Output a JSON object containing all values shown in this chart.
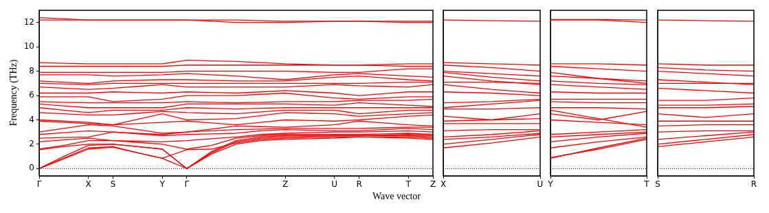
{
  "chart_data": [
    {
      "type": "line",
      "xlabel": "Wave vector",
      "ylabel": "Frequency (THz)",
      "legend": false,
      "grid": false,
      "categories": [
        "Γ",
        null,
        "X",
        "S",
        null,
        "Y",
        "Γ",
        null,
        null,
        null,
        "Z",
        null,
        "U",
        "R",
        null,
        "T",
        "Z"
      ],
      "ylim": [
        -0.6,
        13
      ],
      "yticks": [
        0,
        2,
        4,
        6,
        8,
        10,
        12
      ],
      "ref_lines": [
        {
          "axis": "y",
          "value": 0,
          "color": "#0000ff",
          "line_style": "dotted"
        }
      ],
      "series": [
        {
          "color": "#ff0000",
          "values": [
            0,
            0.8,
            1.6,
            1.75,
            1.3,
            0.85,
            0,
            1.2,
            2.0,
            2.3,
            2.4,
            2.45,
            2.5,
            2.6,
            2.55,
            2.5,
            2.4
          ]
        },
        {
          "color": "#ff0000",
          "values": [
            0,
            0.85,
            1.7,
            1.8,
            1.3,
            0.85,
            1.55,
            1.6,
            2.1,
            2.4,
            2.5,
            2.55,
            2.6,
            2.6,
            2.6,
            2.6,
            2.5
          ]
        },
        {
          "color": "#ff0000",
          "values": [
            0,
            1.0,
            1.9,
            2.0,
            1.8,
            1.6,
            0,
            1.3,
            2.2,
            2.5,
            2.6,
            2.65,
            2.7,
            2.7,
            2.7,
            2.7,
            2.6
          ]
        },
        {
          "color": "#ff0000",
          "values": [
            1.55,
            1.8,
            2.0,
            2.0,
            1.8,
            1.6,
            0,
            1.4,
            2.3,
            2.6,
            2.7,
            2.7,
            2.7,
            2.7,
            2.75,
            2.8,
            2.7
          ]
        },
        {
          "color": "#ff0000",
          "values": [
            1.6,
            1.9,
            2.3,
            2.3,
            2.15,
            2.0,
            1.6,
            1.9,
            2.5,
            2.7,
            2.8,
            2.8,
            2.8,
            2.8,
            2.85,
            2.9,
            2.8
          ]
        },
        {
          "color": "#ff0000",
          "values": [
            2.2,
            2.35,
            2.5,
            2.3,
            2.25,
            2.2,
            2.3,
            2.45,
            2.6,
            2.8,
            2.9,
            2.95,
            3.0,
            3.0,
            3.05,
            3.1,
            3.0
          ]
        },
        {
          "color": "#ff0000",
          "values": [
            2.5,
            2.55,
            2.6,
            3.0,
            2.85,
            2.7,
            2.8,
            2.85,
            2.9,
            3.1,
            3.2,
            3.15,
            3.1,
            3.1,
            3.2,
            3.3,
            3.2
          ]
        },
        {
          "color": "#ff0000",
          "values": [
            2.8,
            2.95,
            3.1,
            3.0,
            2.9,
            2.8,
            3.0,
            3.1,
            3.2,
            3.25,
            3.3,
            3.3,
            3.3,
            3.3,
            3.35,
            3.4,
            3.4
          ]
        },
        {
          "color": "#ff0000",
          "values": [
            3.0,
            3.3,
            3.6,
            3.5,
            3.2,
            2.9,
            3.0,
            3.25,
            3.5,
            3.45,
            3.4,
            3.5,
            3.6,
            3.9,
            3.75,
            3.6,
            3.5
          ]
        },
        {
          "color": "#ff0000",
          "values": [
            3.9,
            3.8,
            3.7,
            3.6,
            3.7,
            3.8,
            3.9,
            3.75,
            3.6,
            3.8,
            4.0,
            3.95,
            3.9,
            4.0,
            4.15,
            4.3,
            4.4
          ]
        },
        {
          "color": "#ff0000",
          "values": [
            4.0,
            3.9,
            3.8,
            3.6,
            4.05,
            4.5,
            4.0,
            4.05,
            4.1,
            4.35,
            4.6,
            4.55,
            4.5,
            4.3,
            4.4,
            4.5,
            4.6
          ]
        },
        {
          "color": "#ff0000",
          "values": [
            4.6,
            4.5,
            4.4,
            4.4,
            4.55,
            4.7,
            4.6,
            4.55,
            4.5,
            4.65,
            4.8,
            4.8,
            4.8,
            4.5,
            4.65,
            4.8,
            4.8
          ]
        },
        {
          "color": "#ff0000",
          "values": [
            5.0,
            4.8,
            4.6,
            4.8,
            4.8,
            4.8,
            5.0,
            4.95,
            4.9,
            4.95,
            5.0,
            5.0,
            5.0,
            5.0,
            5.0,
            5.0,
            5.0
          ]
        },
        {
          "color": "#ff0000",
          "values": [
            5.3,
            5.15,
            5.0,
            5.0,
            5.0,
            5.0,
            5.3,
            5.3,
            5.3,
            5.3,
            5.3,
            5.25,
            5.2,
            5.4,
            5.3,
            5.2,
            5.1
          ]
        },
        {
          "color": "#ff0000",
          "values": [
            5.5,
            5.45,
            5.4,
            5.4,
            5.4,
            5.4,
            5.5,
            5.45,
            5.4,
            5.45,
            5.5,
            5.5,
            5.5,
            5.6,
            5.6,
            5.6,
            5.7
          ]
        },
        {
          "color": "#ff0000",
          "values": [
            5.9,
            5.9,
            5.9,
            5.5,
            5.6,
            5.7,
            6.0,
            6.0,
            6.0,
            6.1,
            6.2,
            6.0,
            5.8,
            5.7,
            5.8,
            5.9,
            5.9
          ]
        },
        {
          "color": "#ff0000",
          "values": [
            6.2,
            6.2,
            6.2,
            6.3,
            6.25,
            6.2,
            6.3,
            6.25,
            6.2,
            6.3,
            6.4,
            6.3,
            6.2,
            6.0,
            6.15,
            6.3,
            6.3
          ]
        },
        {
          "color": "#ff0000",
          "values": [
            6.7,
            6.6,
            6.5,
            6.6,
            6.75,
            6.9,
            6.7,
            6.7,
            6.7,
            6.7,
            6.7,
            6.8,
            6.9,
            6.8,
            6.75,
            6.7,
            6.9
          ]
        },
        {
          "color": "#ff0000",
          "values": [
            7.0,
            6.95,
            6.9,
            7.0,
            7.0,
            7.0,
            7.0,
            7.0,
            7.0,
            7.0,
            7.0,
            7.0,
            7.0,
            7.0,
            7.05,
            7.1,
            7.1
          ]
        },
        {
          "color": "#ff0000",
          "values": [
            7.2,
            7.1,
            7.0,
            7.2,
            7.25,
            7.3,
            7.3,
            7.25,
            7.2,
            7.2,
            7.2,
            7.35,
            7.5,
            7.6,
            7.45,
            7.3,
            7.2
          ]
        },
        {
          "color": "#ff0000",
          "values": [
            7.7,
            7.7,
            7.7,
            7.6,
            7.65,
            7.7,
            7.8,
            7.7,
            7.6,
            7.45,
            7.3,
            7.5,
            7.7,
            7.8,
            7.7,
            7.6,
            7.5
          ]
        },
        {
          "color": "#ff0000",
          "values": [
            7.9,
            7.9,
            7.9,
            7.9,
            7.9,
            7.9,
            8.0,
            8.0,
            8.0,
            8.0,
            8.0,
            7.95,
            7.9,
            7.9,
            8.05,
            8.2,
            8.2
          ]
        },
        {
          "color": "#ff0000",
          "values": [
            8.4,
            8.4,
            8.4,
            8.4,
            8.4,
            8.4,
            8.5,
            8.5,
            8.5,
            8.5,
            8.5,
            8.5,
            8.5,
            8.5,
            8.45,
            8.4,
            8.4
          ]
        },
        {
          "color": "#ff0000",
          "values": [
            8.7,
            8.65,
            8.6,
            8.6,
            8.6,
            8.6,
            8.9,
            8.85,
            8.8,
            8.7,
            8.6,
            8.55,
            8.5,
            8.5,
            8.55,
            8.6,
            8.6
          ]
        },
        {
          "color": "#ff0000",
          "values": [
            12.2,
            12.2,
            12.2,
            12.2,
            12.2,
            12.2,
            12.2,
            12.1,
            12.0,
            12.0,
            12.0,
            12.05,
            12.1,
            12.1,
            12.05,
            12.0,
            12.0
          ]
        },
        {
          "color": "#ff0000",
          "values": [
            12.4,
            12.3,
            12.2,
            12.2,
            12.2,
            12.2,
            12.2,
            12.2,
            12.2,
            12.15,
            12.1,
            12.1,
            12.1,
            12.1,
            12.1,
            12.1,
            12.1
          ]
        }
      ]
    },
    {
      "type": "line",
      "legend": false,
      "grid": false,
      "tick_labels": "x",
      "categories": [
        "X",
        null,
        "U"
      ],
      "ylim": [
        -0.6,
        13
      ],
      "ref_lines": [
        {
          "axis": "y",
          "value": 0,
          "color": "#0000ff",
          "line_style": "dotted"
        }
      ],
      "series": [
        {
          "color": "#ff0000",
          "values": [
            12.2,
            12.15,
            12.1
          ]
        },
        {
          "color": "#ff0000",
          "values": [
            8.7,
            8.6,
            8.5
          ]
        },
        {
          "color": "#ff0000",
          "values": [
            8.5,
            8.3,
            8.0
          ]
        },
        {
          "color": "#ff0000",
          "values": [
            8.0,
            7.8,
            7.6
          ]
        },
        {
          "color": "#ff0000",
          "values": [
            7.9,
            7.5,
            7.2
          ]
        },
        {
          "color": "#ff0000",
          "values": [
            7.6,
            7.2,
            6.9
          ]
        },
        {
          "color": "#ff0000",
          "values": [
            7.1,
            7.1,
            7.0
          ]
        },
        {
          "color": "#ff0000",
          "values": [
            6.9,
            6.5,
            6.2
          ]
        },
        {
          "color": "#ff0000",
          "values": [
            6.3,
            6.2,
            6.0
          ]
        },
        {
          "color": "#ff0000",
          "values": [
            5.4,
            5.5,
            5.7
          ]
        },
        {
          "color": "#ff0000",
          "values": [
            5.0,
            5.3,
            5.6
          ]
        },
        {
          "color": "#ff0000",
          "values": [
            4.9,
            4.9,
            5.0
          ]
        },
        {
          "color": "#ff0000",
          "values": [
            4.3,
            4.0,
            4.5
          ]
        },
        {
          "color": "#ff0000",
          "values": [
            3.9,
            4.0,
            4.1
          ]
        },
        {
          "color": "#ff0000",
          "values": [
            3.7,
            3.7,
            3.7
          ]
        },
        {
          "color": "#ff0000",
          "values": [
            3.1,
            3.2,
            3.2
          ]
        },
        {
          "color": "#ff0000",
          "values": [
            2.6,
            2.8,
            3.1
          ]
        },
        {
          "color": "#ff0000",
          "values": [
            2.4,
            2.6,
            2.9
          ]
        },
        {
          "color": "#ff0000",
          "values": [
            2.0,
            2.4,
            2.8
          ]
        },
        {
          "color": "#ff0000",
          "values": [
            1.7,
            2.1,
            2.6
          ]
        }
      ]
    },
    {
      "type": "line",
      "legend": false,
      "grid": false,
      "tick_labels": "x",
      "categories": [
        "Y",
        null,
        "T"
      ],
      "ylim": [
        -0.6,
        13
      ],
      "ref_lines": [
        {
          "axis": "y",
          "value": 0,
          "color": "#0000ff",
          "line_style": "dotted"
        }
      ],
      "series": [
        {
          "color": "#ff0000",
          "values": [
            12.2,
            12.2,
            12.0
          ]
        },
        {
          "color": "#ff0000",
          "values": [
            12.25,
            12.25,
            12.2
          ]
        },
        {
          "color": "#ff0000",
          "values": [
            8.6,
            8.6,
            8.5
          ]
        },
        {
          "color": "#ff0000",
          "values": [
            8.4,
            8.2,
            8.0
          ]
        },
        {
          "color": "#ff0000",
          "values": [
            7.9,
            7.4,
            7.0
          ]
        },
        {
          "color": "#ff0000",
          "values": [
            7.6,
            7.4,
            7.2
          ]
        },
        {
          "color": "#ff0000",
          "values": [
            7.2,
            7.0,
            6.9
          ]
        },
        {
          "color": "#ff0000",
          "values": [
            6.9,
            6.7,
            6.5
          ]
        },
        {
          "color": "#ff0000",
          "values": [
            6.3,
            6.2,
            6.2
          ]
        },
        {
          "color": "#ff0000",
          "values": [
            5.7,
            5.7,
            5.7
          ]
        },
        {
          "color": "#ff0000",
          "values": [
            5.5,
            5.4,
            5.4
          ]
        },
        {
          "color": "#ff0000",
          "values": [
            5.0,
            5.0,
            4.9
          ]
        },
        {
          "color": "#ff0000",
          "values": [
            4.8,
            4.1,
            3.4
          ]
        },
        {
          "color": "#ff0000",
          "values": [
            4.5,
            4.0,
            4.7
          ]
        },
        {
          "color": "#ff0000",
          "values": [
            4.0,
            3.8,
            3.6
          ]
        },
        {
          "color": "#ff0000",
          "values": [
            2.8,
            3.0,
            3.2
          ]
        },
        {
          "color": "#ff0000",
          "values": [
            2.6,
            2.8,
            3.0
          ]
        },
        {
          "color": "#ff0000",
          "values": [
            2.2,
            2.6,
            2.9
          ]
        },
        {
          "color": "#ff0000",
          "values": [
            1.7,
            2.2,
            2.6
          ]
        },
        {
          "color": "#ff0000",
          "values": [
            0.85,
            1.7,
            2.5
          ]
        },
        {
          "color": "#ff0000",
          "values": [
            0.9,
            1.6,
            2.4
          ]
        }
      ]
    },
    {
      "type": "line",
      "legend": false,
      "grid": false,
      "tick_labels": "x",
      "categories": [
        "S",
        null,
        "R"
      ],
      "ylim": [
        -0.6,
        13
      ],
      "ref_lines": [
        {
          "axis": "y",
          "value": 0,
          "color": "#0000ff",
          "line_style": "dotted"
        }
      ],
      "series": [
        {
          "color": "#ff0000",
          "values": [
            12.2,
            12.15,
            12.1
          ]
        },
        {
          "color": "#ff0000",
          "values": [
            8.6,
            8.5,
            8.5
          ]
        },
        {
          "color": "#ff0000",
          "values": [
            8.3,
            8.1,
            8.0
          ]
        },
        {
          "color": "#ff0000",
          "values": [
            8.0,
            7.8,
            7.6
          ]
        },
        {
          "color": "#ff0000",
          "values": [
            7.3,
            7.1,
            6.9
          ]
        },
        {
          "color": "#ff0000",
          "values": [
            7.0,
            7.0,
            7.0
          ]
        },
        {
          "color": "#ff0000",
          "values": [
            6.6,
            6.4,
            6.2
          ]
        },
        {
          "color": "#ff0000",
          "values": [
            5.6,
            5.6,
            5.8
          ]
        },
        {
          "color": "#ff0000",
          "values": [
            5.2,
            5.2,
            5.3
          ]
        },
        {
          "color": "#ff0000",
          "values": [
            5.0,
            5.0,
            5.1
          ]
        },
        {
          "color": "#ff0000",
          "values": [
            4.5,
            4.2,
            4.5
          ]
        },
        {
          "color": "#ff0000",
          "values": [
            3.9,
            3.9,
            3.9
          ]
        },
        {
          "color": "#ff0000",
          "values": [
            3.5,
            3.6,
            3.6
          ]
        },
        {
          "color": "#ff0000",
          "values": [
            3.0,
            3.1,
            3.1
          ]
        },
        {
          "color": "#ff0000",
          "values": [
            2.4,
            2.7,
            3.0
          ]
        },
        {
          "color": "#ff0000",
          "values": [
            2.0,
            2.4,
            2.8
          ]
        },
        {
          "color": "#ff0000",
          "values": [
            1.8,
            2.2,
            2.6
          ]
        }
      ]
    }
  ]
}
